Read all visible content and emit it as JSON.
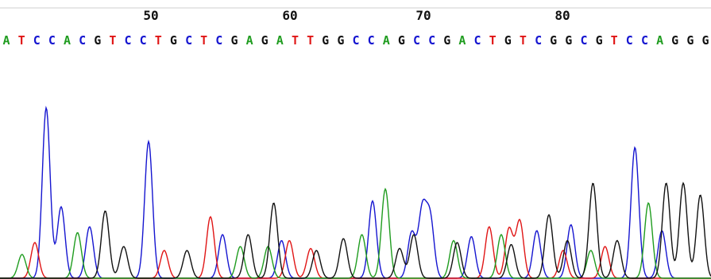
{
  "chart_data": {
    "type": "line",
    "title": "",
    "xlabel": "",
    "ylabel": "",
    "grid": false,
    "legend": "none",
    "position_ticks": [
      50,
      60,
      70,
      80
    ],
    "base_calls": "ATCCACGTCCTGCTCGAGATTGGCCAGCCGACTGTCGGCGTCCAGGG",
    "base_colors": {
      "A": "#1f9c1f",
      "C": "#1515d0",
      "G": "#111111",
      "T": "#e01515"
    },
    "x_range": [
      0,
      100
    ],
    "ylim": [
      0,
      1
    ],
    "traces": [
      {
        "base": "C",
        "color": "#1515d0",
        "peaks": [
          [
            6.5,
            0.86
          ],
          [
            8.6,
            0.36
          ],
          [
            12.6,
            0.26
          ],
          [
            20.9,
            0.69
          ],
          [
            31.3,
            0.22
          ],
          [
            39.6,
            0.19
          ],
          [
            52.4,
            0.39
          ],
          [
            57.9,
            0.23
          ],
          [
            59.4,
            0.34
          ],
          [
            60.5,
            0.3
          ],
          [
            66.3,
            0.21
          ],
          [
            75.5,
            0.24
          ],
          [
            80.3,
            0.27
          ],
          [
            89.3,
            0.66
          ],
          [
            93.1,
            0.24
          ]
        ]
      },
      {
        "base": "T",
        "color": "#e01515",
        "peaks": [
          [
            4.9,
            0.18
          ],
          [
            23.1,
            0.14
          ],
          [
            29.6,
            0.31
          ],
          [
            40.7,
            0.19
          ],
          [
            43.7,
            0.15
          ],
          [
            68.8,
            0.26
          ],
          [
            71.6,
            0.25
          ],
          [
            73.1,
            0.29
          ],
          [
            79.2,
            0.14
          ],
          [
            85.1,
            0.16
          ]
        ]
      },
      {
        "base": "A",
        "color": "#1f9c1f",
        "peaks": [
          [
            3.1,
            0.12
          ],
          [
            10.9,
            0.23
          ],
          [
            33.8,
            0.16
          ],
          [
            37.7,
            0.16
          ],
          [
            50.9,
            0.22
          ],
          [
            54.2,
            0.45
          ],
          [
            63.8,
            0.19
          ],
          [
            70.5,
            0.22
          ],
          [
            83.1,
            0.14
          ],
          [
            91.2,
            0.38
          ]
        ]
      },
      {
        "base": "G",
        "color": "#111111",
        "peaks": [
          [
            14.8,
            0.34
          ],
          [
            17.4,
            0.16
          ],
          [
            26.3,
            0.14
          ],
          [
            34.9,
            0.22
          ],
          [
            38.5,
            0.38
          ],
          [
            44.5,
            0.14
          ],
          [
            48.3,
            0.2
          ],
          [
            56.2,
            0.15
          ],
          [
            58.2,
            0.22
          ],
          [
            64.3,
            0.18
          ],
          [
            71.9,
            0.17
          ],
          [
            77.2,
            0.32
          ],
          [
            79.8,
            0.19
          ],
          [
            83.4,
            0.48
          ],
          [
            86.8,
            0.19
          ],
          [
            93.7,
            0.48
          ],
          [
            96.1,
            0.48
          ],
          [
            98.5,
            0.42
          ]
        ]
      }
    ]
  }
}
